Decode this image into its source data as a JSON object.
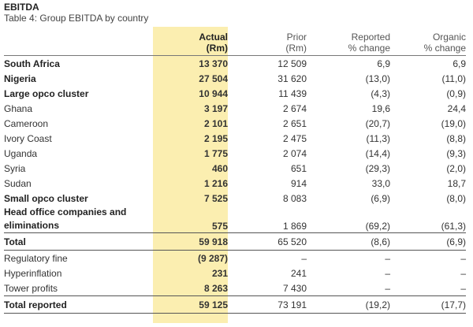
{
  "title": "EBITDA",
  "subtitle": "Table 4: Group EBITDA by country",
  "columns": {
    "actual": [
      "Actual",
      "(Rm)"
    ],
    "prior": [
      "Prior",
      "(Rm)"
    ],
    "reported": [
      "Reported",
      "% change"
    ],
    "organic": [
      "Organic",
      "% change"
    ]
  },
  "rows": [
    {
      "label": "South Africa",
      "actual": "13 370",
      "prior": "12 509",
      "reported": "6,9",
      "organic": "6,9"
    },
    {
      "label": "Nigeria",
      "actual": "27 504",
      "prior": "31 620",
      "reported": "(13,0)",
      "organic": "(11,0)"
    },
    {
      "label": "Large opco cluster",
      "actual": "10 944",
      "prior": "11 439",
      "reported": "(4,3)",
      "organic": "(0,9)"
    },
    {
      "label": "Ghana",
      "actual": "3 197",
      "prior": "2 674",
      "reported": "19,6",
      "organic": "24,4"
    },
    {
      "label": "Cameroon",
      "actual": "2 101",
      "prior": "2 651",
      "reported": "(20,7)",
      "organic": "(19,0)"
    },
    {
      "label": "Ivory Coast",
      "actual": "2 195",
      "prior": "2 475",
      "reported": "(11,3)",
      "organic": "(8,8)"
    },
    {
      "label": "Uganda",
      "actual": "1 775",
      "prior": "2 074",
      "reported": "(14,4)",
      "organic": "(9,3)"
    },
    {
      "label": "Syria",
      "actual": "460",
      "prior": "651",
      "reported": "(29,3)",
      "organic": "(2,0)"
    },
    {
      "label": "Sudan",
      "actual": "1 216",
      "prior": "914",
      "reported": "33,0",
      "organic": "18,7"
    },
    {
      "label": "Small opco cluster",
      "actual": "7 525",
      "prior": "8 083",
      "reported": "(6,9)",
      "organic": "(8,0)"
    },
    {
      "label1": "Head office companies and",
      "label2": "eliminations",
      "actual": "575",
      "prior": "1 869",
      "reported": "(69,2)",
      "organic": "(61,3)"
    },
    {
      "label": "Total",
      "actual": "59 918",
      "prior": "65 520",
      "reported": "(8,6)",
      "organic": "(6,9)"
    },
    {
      "label": "Regulatory fine",
      "actual": "(9 287)",
      "prior": "–",
      "reported": "–",
      "organic": "–"
    },
    {
      "label": "Hyperinflation",
      "actual": "231",
      "prior": "241",
      "reported": "–",
      "organic": "–"
    },
    {
      "label": "Tower profits",
      "actual": "8 263",
      "prior": "7 430",
      "reported": "–",
      "organic": "–"
    },
    {
      "label": "Total reported",
      "actual": "59 125",
      "prior": "73 191",
      "reported": "(19,2)",
      "organic": "(17,7)"
    }
  ],
  "colors": {
    "highlight": "#fbeeb0",
    "text": "#333333"
  }
}
